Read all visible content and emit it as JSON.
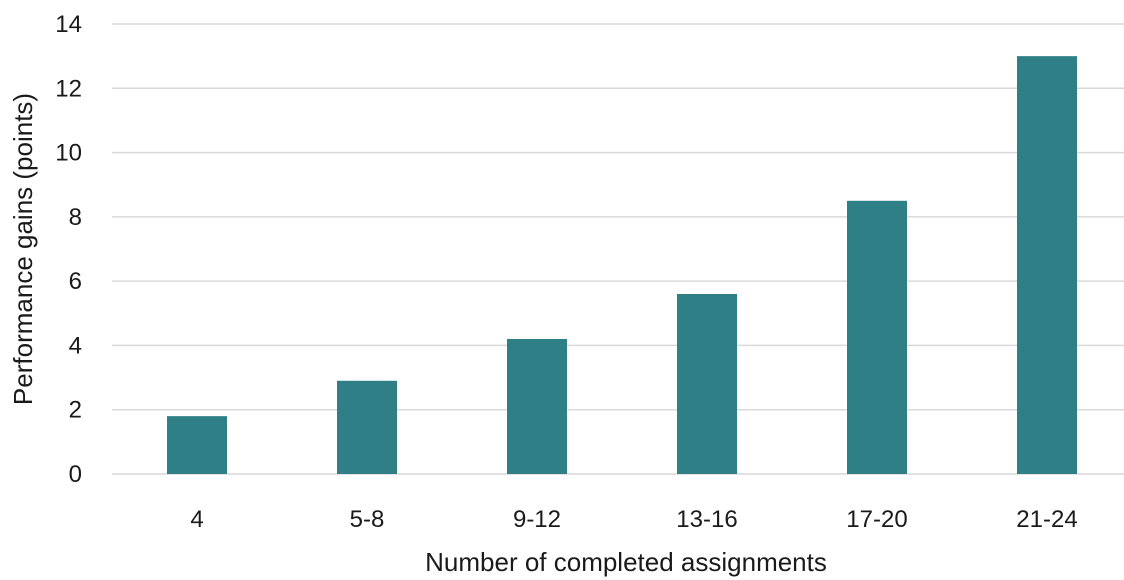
{
  "chart_data": {
    "type": "bar",
    "categories": [
      "4",
      "5-8",
      "9-12",
      "13-16",
      "17-20",
      "21-24"
    ],
    "values": [
      1.8,
      2.9,
      4.2,
      5.6,
      8.5,
      13.0
    ],
    "xlabel": "Number of completed assignments",
    "ylabel": "Performance gains (points)",
    "ylim": [
      0,
      14
    ],
    "yticks": [
      0,
      2,
      4,
      6,
      8,
      10,
      12,
      14
    ],
    "grid": true,
    "bar_color": "#2f7f86"
  }
}
